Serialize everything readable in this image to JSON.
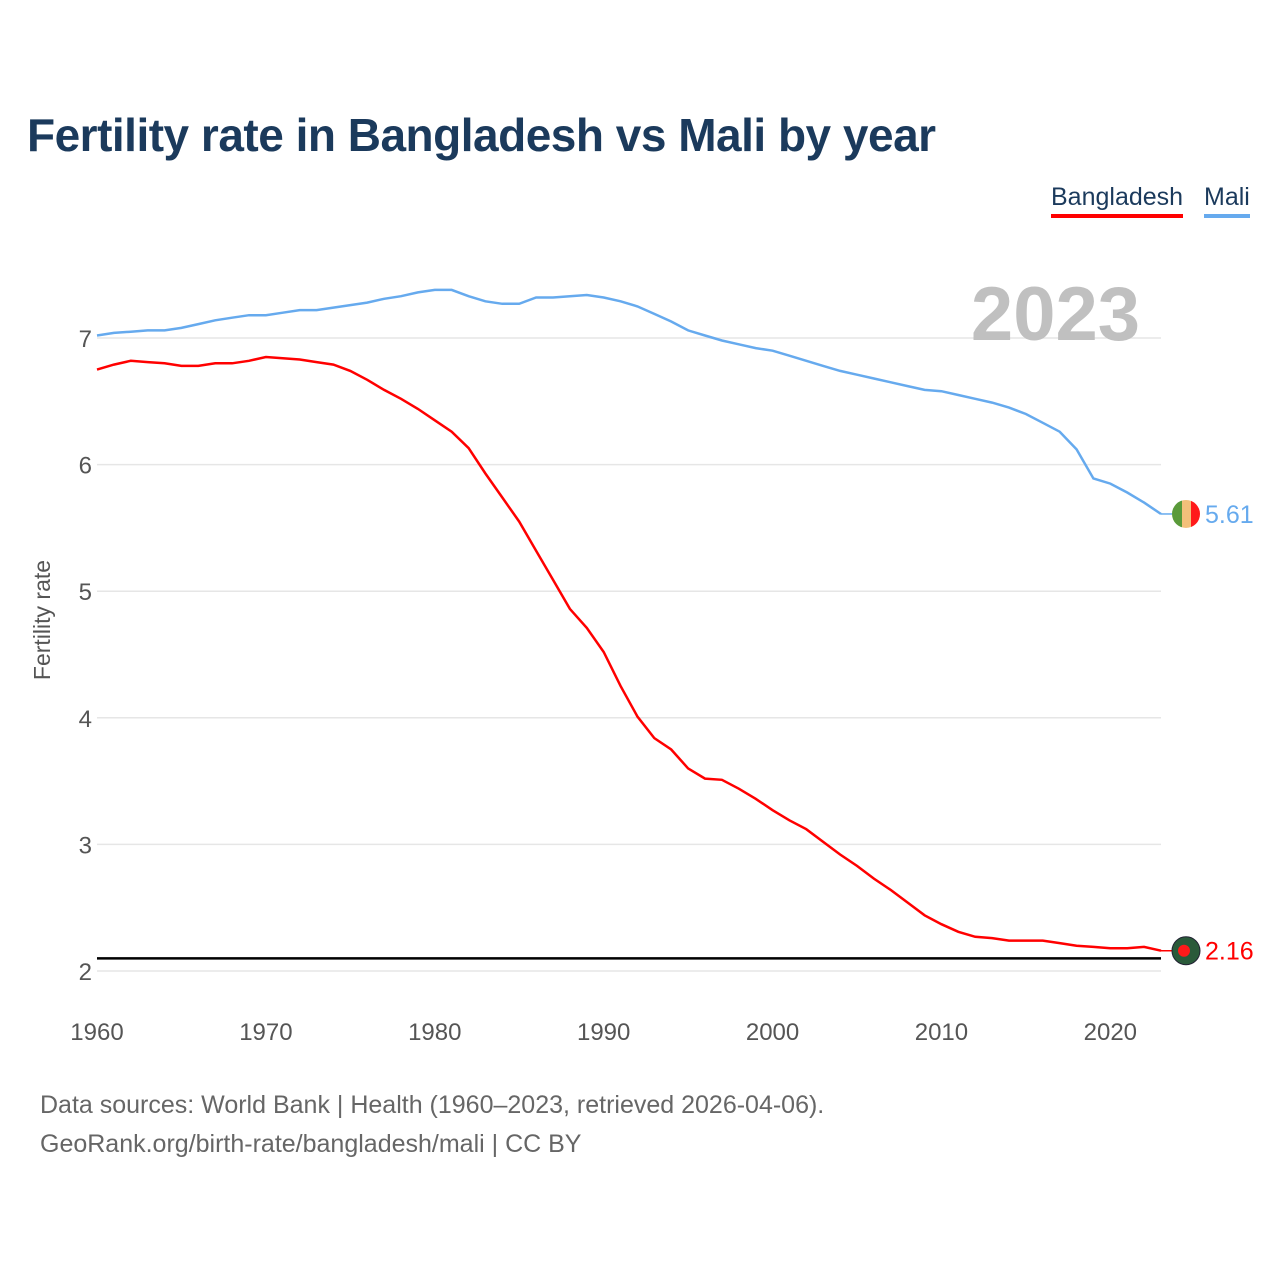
{
  "chart_data": {
    "type": "line",
    "title": "Fertility rate in Bangladesh vs Mali by year",
    "xlabel": "",
    "ylabel": "Fertility rate",
    "xlim": [
      1960,
      2023
    ],
    "ylim": [
      2,
      7.5
    ],
    "xticks": [
      "1960",
      "1970",
      "1980",
      "1990",
      "2000",
      "2010",
      "2020"
    ],
    "yticks": [
      "2",
      "3",
      "4",
      "5",
      "6",
      "7"
    ],
    "grid": true,
    "legend_placement": "top-right",
    "year_label": "2023",
    "reference_line": 2.1,
    "x": [
      1960,
      1961,
      1962,
      1963,
      1964,
      1965,
      1966,
      1967,
      1968,
      1969,
      1970,
      1971,
      1972,
      1973,
      1974,
      1975,
      1976,
      1977,
      1978,
      1979,
      1980,
      1981,
      1982,
      1983,
      1984,
      1985,
      1986,
      1987,
      1988,
      1989,
      1990,
      1991,
      1992,
      1993,
      1994,
      1995,
      1996,
      1997,
      1998,
      1999,
      2000,
      2001,
      2002,
      2003,
      2004,
      2005,
      2006,
      2007,
      2008,
      2009,
      2010,
      2011,
      2012,
      2013,
      2014,
      2015,
      2016,
      2017,
      2018,
      2019,
      2020,
      2021,
      2022,
      2023
    ],
    "series": [
      {
        "name": "Bangladesh",
        "color": "#ff0000",
        "end_label": "2.16",
        "values": [
          6.75,
          6.79,
          6.82,
          6.81,
          6.8,
          6.78,
          6.78,
          6.8,
          6.8,
          6.82,
          6.85,
          6.84,
          6.83,
          6.81,
          6.79,
          6.74,
          6.67,
          6.59,
          6.52,
          6.44,
          6.35,
          6.26,
          6.13,
          5.93,
          5.74,
          5.55,
          5.32,
          5.09,
          4.86,
          4.71,
          4.52,
          4.25,
          4.01,
          3.84,
          3.75,
          3.6,
          3.52,
          3.51,
          3.44,
          3.36,
          3.27,
          3.19,
          3.12,
          3.02,
          2.92,
          2.83,
          2.73,
          2.64,
          2.54,
          2.44,
          2.37,
          2.31,
          2.27,
          2.26,
          2.24,
          2.24,
          2.24,
          2.22,
          2.2,
          2.19,
          2.18,
          2.18,
          2.19,
          2.16
        ]
      },
      {
        "name": "Mali",
        "color": "#66aaee",
        "end_label": "5.61",
        "values": [
          7.02,
          7.04,
          7.05,
          7.06,
          7.06,
          7.08,
          7.11,
          7.14,
          7.16,
          7.18,
          7.18,
          7.2,
          7.22,
          7.22,
          7.24,
          7.26,
          7.28,
          7.31,
          7.33,
          7.36,
          7.38,
          7.38,
          7.33,
          7.29,
          7.27,
          7.27,
          7.32,
          7.32,
          7.33,
          7.34,
          7.32,
          7.29,
          7.25,
          7.19,
          7.13,
          7.06,
          7.02,
          6.98,
          6.95,
          6.92,
          6.9,
          6.86,
          6.82,
          6.78,
          6.74,
          6.71,
          6.68,
          6.65,
          6.62,
          6.59,
          6.58,
          6.55,
          6.52,
          6.49,
          6.45,
          6.4,
          6.33,
          6.26,
          6.12,
          5.89,
          5.85,
          5.78,
          5.7,
          5.61
        ]
      }
    ]
  },
  "footer": {
    "line1": "Data sources: World Bank | Health (1960–2023, retrieved 2026-04-06).",
    "line2": "GeoRank.org/birth-rate/bangladesh/mali | CC BY"
  }
}
